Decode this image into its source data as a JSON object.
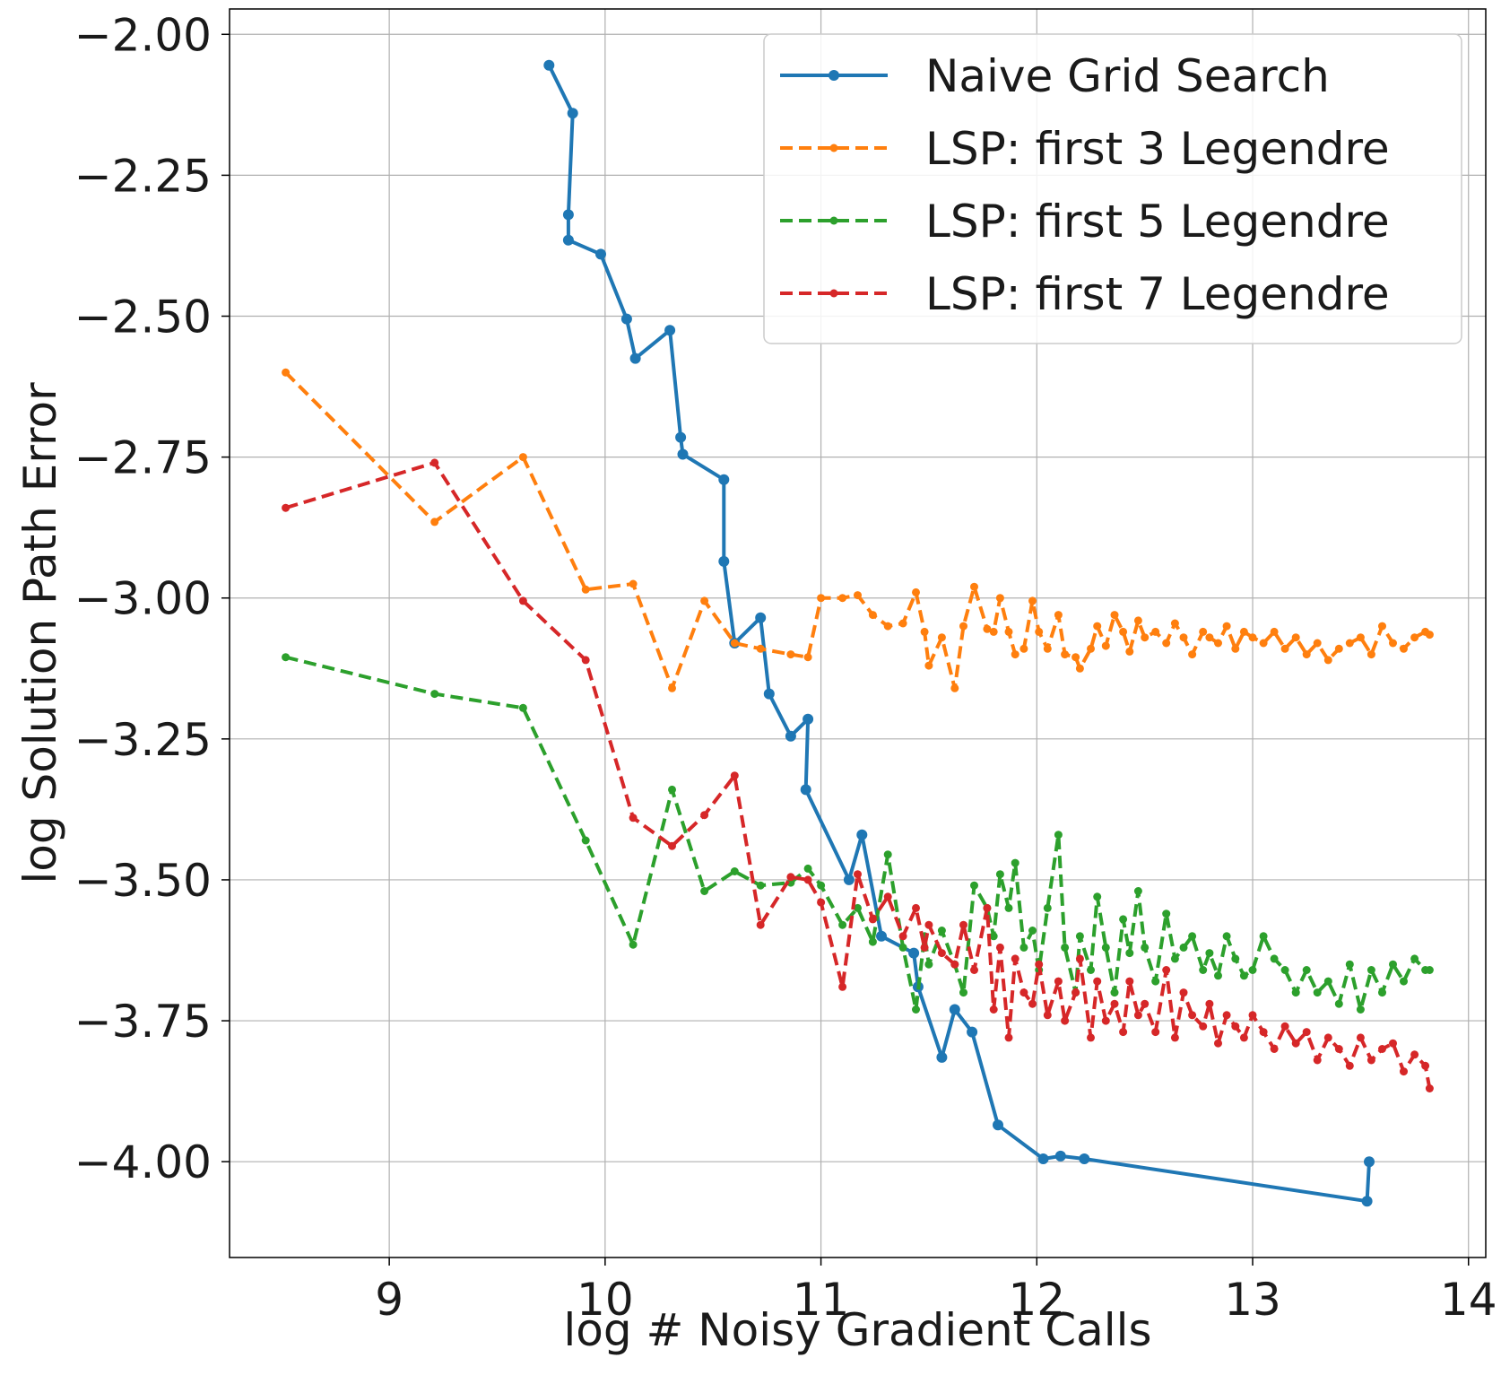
{
  "chart_data": {
    "type": "line",
    "title": "",
    "xlabel": "log  # Noisy Gradient Calls",
    "ylabel": "log  Solution Path Error",
    "xlim": [
      8.26,
      14.08
    ],
    "ylim": [
      -4.17,
      -1.955
    ],
    "x_ticks": [
      9,
      10,
      11,
      12,
      13,
      14
    ],
    "x_tick_labels": [
      "9",
      "10",
      "11",
      "12",
      "13",
      "14"
    ],
    "y_ticks": [
      -2.0,
      -2.25,
      -2.5,
      -2.75,
      -3.0,
      -3.25,
      -3.5,
      -3.75,
      -4.0
    ],
    "y_tick_labels": [
      "−2.00",
      "−2.25",
      "−2.50",
      "−2.75",
      "−3.00",
      "−3.25",
      "−3.50",
      "−3.75",
      "−4.00"
    ],
    "grid": true,
    "legend_position": "top-right",
    "series": [
      {
        "name": "Naive Grid Search",
        "color": "#1f77b4",
        "style": "solid",
        "x": [
          9.74,
          9.85,
          9.83,
          9.83,
          9.98,
          10.1,
          10.14,
          10.3,
          10.35,
          10.36,
          10.55,
          10.55,
          10.6,
          10.72,
          10.76,
          10.86,
          10.94,
          10.93,
          11.13,
          11.19,
          11.28,
          11.43,
          11.45,
          11.56,
          11.62,
          11.7,
          11.82,
          12.03,
          12.11,
          12.22,
          13.53,
          13.54
        ],
        "y": [
          -2.055,
          -2.14,
          -2.32,
          -2.365,
          -2.39,
          -2.505,
          -2.575,
          -2.525,
          -2.715,
          -2.745,
          -2.79,
          -2.935,
          -3.08,
          -3.035,
          -3.17,
          -3.245,
          -3.215,
          -3.34,
          -3.5,
          -3.42,
          -3.6,
          -3.63,
          -3.69,
          -3.815,
          -3.73,
          -3.77,
          -3.935,
          -3.995,
          -3.99,
          -3.995,
          -4.07,
          -4.0
        ]
      },
      {
        "name": "LSP: first 3 Legendre",
        "color": "#ff7f0e",
        "style": "dashed",
        "x": [
          8.52,
          9.21,
          9.62,
          9.91,
          10.13,
          10.31,
          10.46,
          10.6,
          10.72,
          10.86,
          10.94,
          11.0,
          11.1,
          11.17,
          11.24,
          11.31,
          11.38,
          11.44,
          11.48,
          11.5,
          11.56,
          11.62,
          11.66,
          11.71,
          11.77,
          11.8,
          11.83,
          11.87,
          11.9,
          11.94,
          11.98,
          12.01,
          12.05,
          12.1,
          12.13,
          12.18,
          12.2,
          12.25,
          12.28,
          12.32,
          12.36,
          12.4,
          12.43,
          12.47,
          12.5,
          12.55,
          12.6,
          12.64,
          12.68,
          12.72,
          12.77,
          12.8,
          12.84,
          12.88,
          12.92,
          12.96,
          13.0,
          13.05,
          13.1,
          13.15,
          13.2,
          13.25,
          13.3,
          13.35,
          13.4,
          13.45,
          13.5,
          13.55,
          13.6,
          13.65,
          13.7,
          13.75,
          13.8,
          13.82
        ],
        "y": [
          -2.6,
          -2.865,
          -2.75,
          -2.985,
          -2.975,
          -3.16,
          -3.005,
          -3.08,
          -3.09,
          -3.1,
          -3.105,
          -3.0,
          -3.0,
          -2.995,
          -3.03,
          -3.05,
          -3.045,
          -2.99,
          -3.06,
          -3.12,
          -3.07,
          -3.16,
          -3.05,
          -2.98,
          -3.055,
          -3.06,
          -3.0,
          -3.06,
          -3.1,
          -3.09,
          -3.005,
          -3.06,
          -3.09,
          -3.03,
          -3.1,
          -3.105,
          -3.125,
          -3.09,
          -3.05,
          -3.085,
          -3.03,
          -3.06,
          -3.095,
          -3.04,
          -3.07,
          -3.06,
          -3.08,
          -3.045,
          -3.07,
          -3.1,
          -3.06,
          -3.07,
          -3.08,
          -3.05,
          -3.09,
          -3.06,
          -3.07,
          -3.08,
          -3.06,
          -3.09,
          -3.07,
          -3.1,
          -3.08,
          -3.11,
          -3.09,
          -3.08,
          -3.07,
          -3.1,
          -3.05,
          -3.08,
          -3.09,
          -3.07,
          -3.06,
          -3.065
        ]
      },
      {
        "name": "LSP: first 5 Legendre",
        "color": "#2ca02c",
        "style": "dashed",
        "x": [
          8.52,
          9.21,
          9.62,
          9.91,
          10.13,
          10.31,
          10.46,
          10.6,
          10.72,
          10.86,
          10.94,
          11.0,
          11.1,
          11.17,
          11.24,
          11.31,
          11.38,
          11.44,
          11.48,
          11.5,
          11.56,
          11.62,
          11.66,
          11.71,
          11.77,
          11.8,
          11.83,
          11.87,
          11.9,
          11.94,
          11.98,
          12.01,
          12.05,
          12.1,
          12.13,
          12.18,
          12.2,
          12.25,
          12.28,
          12.32,
          12.36,
          12.4,
          12.43,
          12.47,
          12.5,
          12.55,
          12.6,
          12.64,
          12.68,
          12.72,
          12.77,
          12.8,
          12.84,
          12.88,
          12.92,
          12.96,
          13.0,
          13.05,
          13.1,
          13.15,
          13.2,
          13.25,
          13.3,
          13.35,
          13.4,
          13.45,
          13.5,
          13.55,
          13.6,
          13.65,
          13.7,
          13.75,
          13.8,
          13.82
        ],
        "y": [
          -3.105,
          -3.17,
          -3.195,
          -3.43,
          -3.615,
          -3.34,
          -3.52,
          -3.485,
          -3.51,
          -3.505,
          -3.48,
          -3.51,
          -3.58,
          -3.55,
          -3.61,
          -3.455,
          -3.62,
          -3.73,
          -3.6,
          -3.65,
          -3.59,
          -3.65,
          -3.7,
          -3.51,
          -3.55,
          -3.6,
          -3.49,
          -3.55,
          -3.47,
          -3.62,
          -3.59,
          -3.66,
          -3.55,
          -3.42,
          -3.62,
          -3.7,
          -3.6,
          -3.66,
          -3.53,
          -3.62,
          -3.7,
          -3.57,
          -3.63,
          -3.52,
          -3.62,
          -3.68,
          -3.56,
          -3.64,
          -3.62,
          -3.6,
          -3.66,
          -3.63,
          -3.67,
          -3.6,
          -3.64,
          -3.67,
          -3.66,
          -3.6,
          -3.64,
          -3.66,
          -3.7,
          -3.66,
          -3.7,
          -3.68,
          -3.72,
          -3.65,
          -3.73,
          -3.66,
          -3.7,
          -3.65,
          -3.68,
          -3.64,
          -3.66,
          -3.66
        ]
      },
      {
        "name": "LSP: first 7 Legendre",
        "color": "#d62728",
        "style": "dashed",
        "x": [
          8.52,
          9.21,
          9.62,
          9.91,
          10.13,
          10.31,
          10.46,
          10.6,
          10.72,
          10.86,
          10.94,
          11.0,
          11.1,
          11.17,
          11.24,
          11.31,
          11.38,
          11.44,
          11.48,
          11.5,
          11.56,
          11.62,
          11.66,
          11.71,
          11.77,
          11.8,
          11.83,
          11.87,
          11.9,
          11.94,
          11.98,
          12.01,
          12.05,
          12.1,
          12.13,
          12.18,
          12.2,
          12.25,
          12.28,
          12.32,
          12.36,
          12.4,
          12.43,
          12.47,
          12.5,
          12.55,
          12.6,
          12.64,
          12.68,
          12.72,
          12.77,
          12.8,
          12.84,
          12.88,
          12.92,
          12.96,
          13.0,
          13.05,
          13.1,
          13.15,
          13.2,
          13.25,
          13.3,
          13.35,
          13.4,
          13.45,
          13.5,
          13.55,
          13.6,
          13.65,
          13.7,
          13.75,
          13.8,
          13.82
        ],
        "y": [
          -2.84,
          -2.76,
          -3.005,
          -3.11,
          -3.39,
          -3.44,
          -3.385,
          -3.315,
          -3.58,
          -3.495,
          -3.5,
          -3.54,
          -3.69,
          -3.49,
          -3.57,
          -3.53,
          -3.6,
          -3.55,
          -3.62,
          -3.58,
          -3.63,
          -3.65,
          -3.58,
          -3.66,
          -3.55,
          -3.73,
          -3.62,
          -3.78,
          -3.64,
          -3.7,
          -3.72,
          -3.65,
          -3.74,
          -3.68,
          -3.75,
          -3.7,
          -3.64,
          -3.78,
          -3.68,
          -3.75,
          -3.72,
          -3.77,
          -3.68,
          -3.74,
          -3.72,
          -3.77,
          -3.66,
          -3.78,
          -3.7,
          -3.74,
          -3.76,
          -3.72,
          -3.79,
          -3.74,
          -3.76,
          -3.78,
          -3.74,
          -3.77,
          -3.8,
          -3.76,
          -3.79,
          -3.77,
          -3.82,
          -3.78,
          -3.8,
          -3.83,
          -3.78,
          -3.82,
          -3.8,
          -3.79,
          -3.84,
          -3.81,
          -3.83,
          -3.87
        ]
      }
    ]
  }
}
